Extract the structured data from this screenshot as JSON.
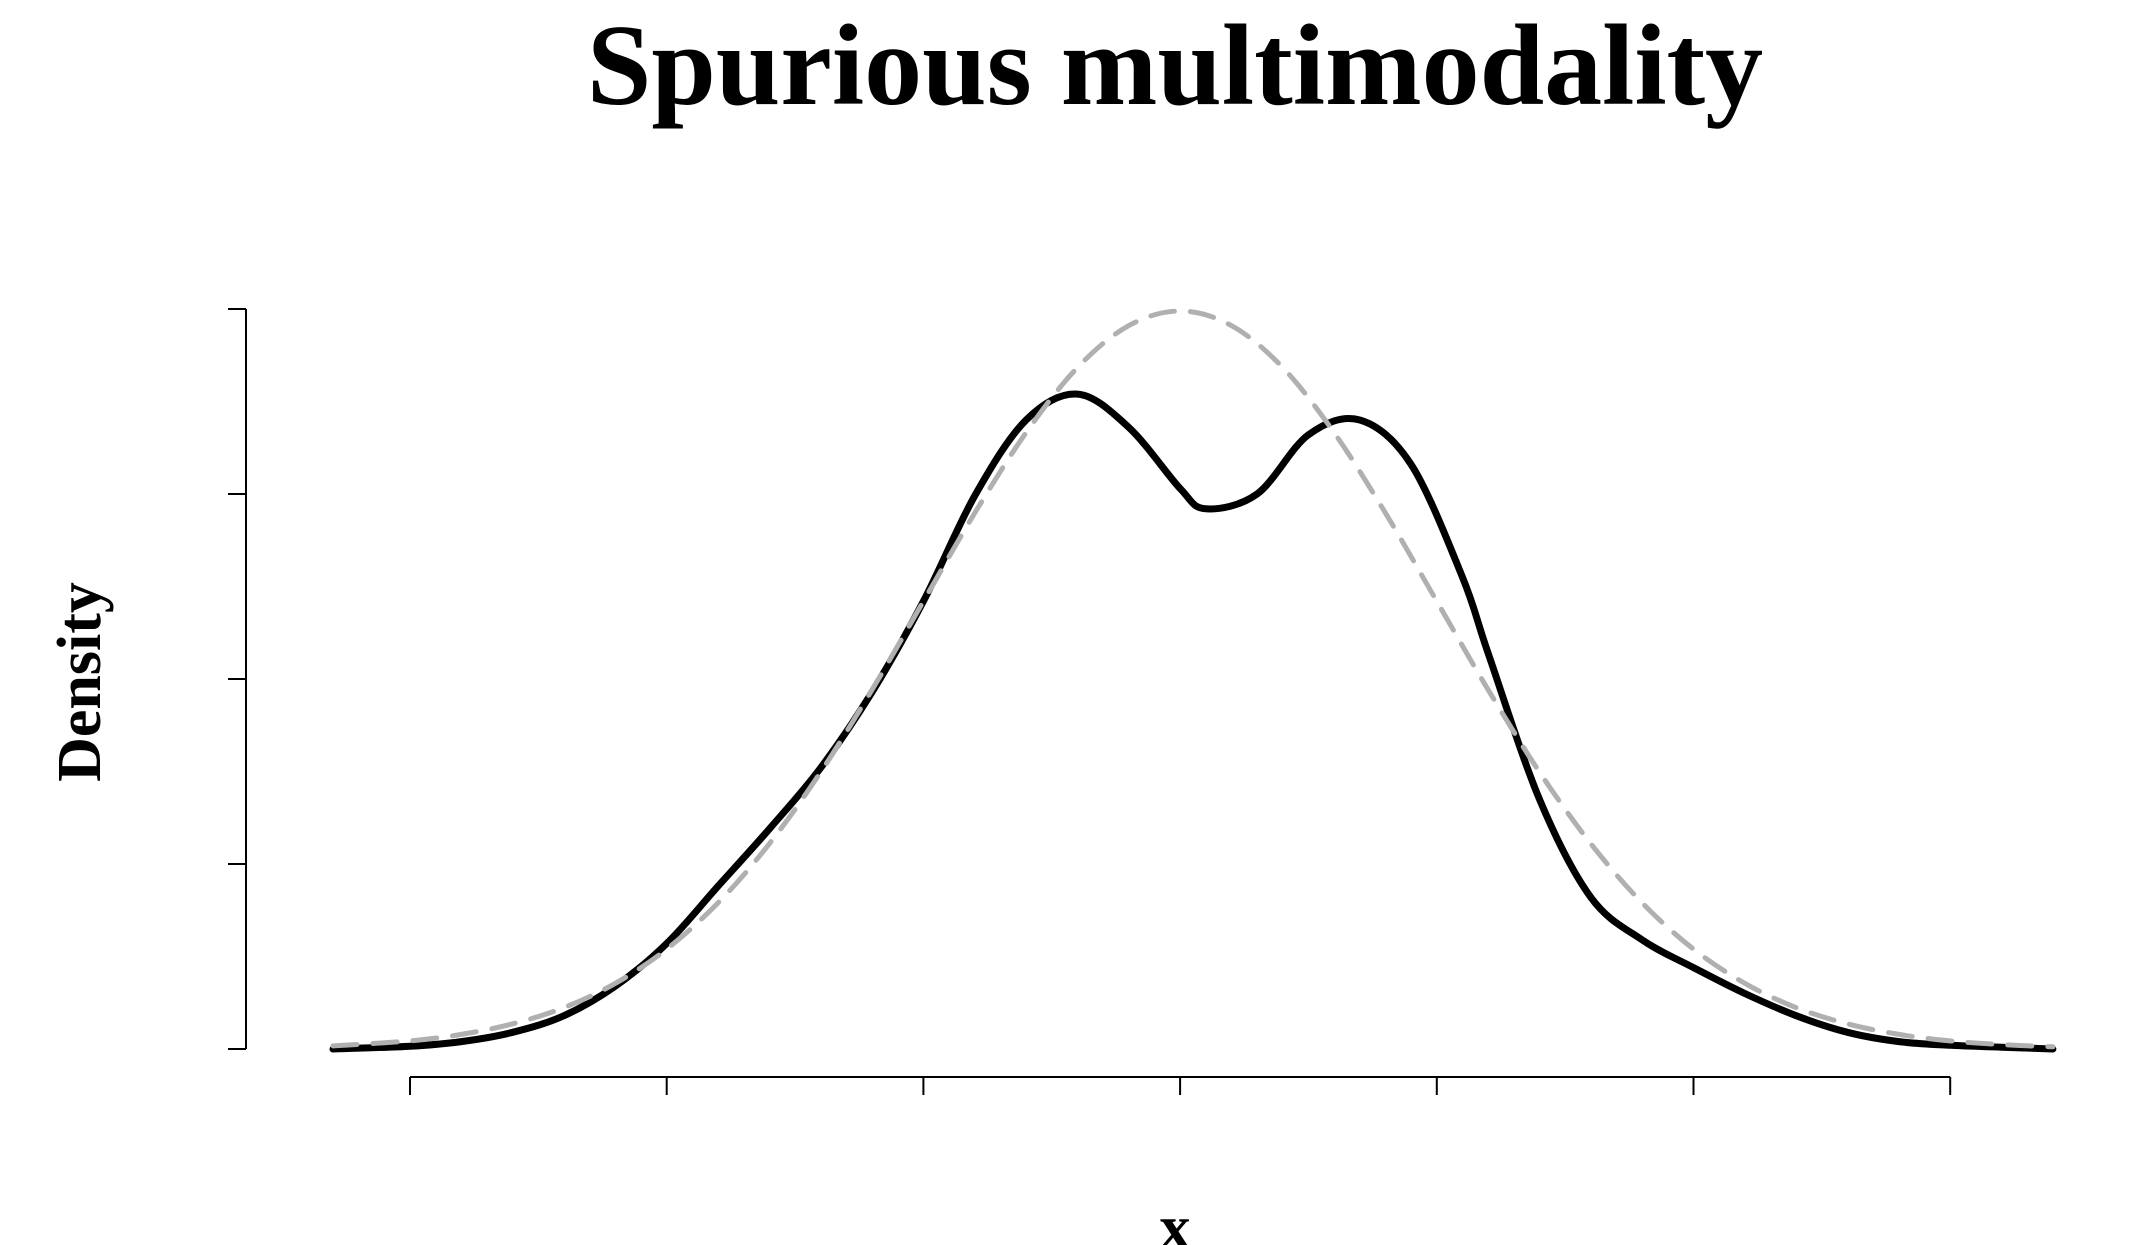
{
  "chart_data": {
    "type": "line",
    "title": "Spurious multimodality",
    "xlabel": "x",
    "ylabel": "Density",
    "xlim": [
      -3.3,
      3.4
    ],
    "ylim": [
      0,
      0.4
    ],
    "x_ticks": [
      -3,
      -2,
      -1,
      0,
      1,
      2,
      3
    ],
    "y_ticks": [
      0,
      0.1,
      0.2,
      0.3,
      0.4
    ],
    "tick_labels_shown": false,
    "grid": false,
    "legend": "none",
    "series": [
      {
        "style": "solid",
        "color": "#000000",
        "x": [
          -3.3,
          -3.0,
          -2.8,
          -2.6,
          -2.4,
          -2.2,
          -2.0,
          -1.8,
          -1.6,
          -1.4,
          -1.2,
          -1.0,
          -0.8,
          -0.6,
          -0.4,
          -0.2,
          0.0,
          0.1,
          0.3,
          0.5,
          0.7,
          0.9,
          1.1,
          1.2,
          1.4,
          1.6,
          1.8,
          2.0,
          2.2,
          2.4,
          2.6,
          2.8,
          3.0,
          3.2,
          3.4
        ],
        "y": [
          0.0,
          0.0015,
          0.004,
          0.009,
          0.018,
          0.034,
          0.057,
          0.088,
          0.119,
          0.152,
          0.193,
          0.242,
          0.299,
          0.34,
          0.354,
          0.336,
          0.303,
          0.292,
          0.3,
          0.332,
          0.34,
          0.316,
          0.255,
          0.214,
          0.135,
          0.082,
          0.059,
          0.044,
          0.03,
          0.018,
          0.009,
          0.004,
          0.002,
          0.001,
          0.0
        ]
      },
      {
        "style": "dashed",
        "color": "#b0b0b0",
        "x": [
          -3.3,
          -3.0,
          -2.8,
          -2.6,
          -2.4,
          -2.2,
          -2.0,
          -1.8,
          -1.6,
          -1.4,
          -1.2,
          -1.0,
          -0.8,
          -0.6,
          -0.4,
          -0.2,
          0.0,
          0.2,
          0.4,
          0.6,
          0.8,
          1.0,
          1.2,
          1.4,
          1.6,
          1.8,
          2.0,
          2.2,
          2.4,
          2.6,
          2.8,
          3.0,
          3.2,
          3.4
        ],
        "y": [
          0.0017,
          0.0044,
          0.0079,
          0.0136,
          0.0224,
          0.0355,
          0.054,
          0.079,
          0.111,
          0.1497,
          0.1942,
          0.242,
          0.2897,
          0.3332,
          0.3683,
          0.391,
          0.3989,
          0.391,
          0.3683,
          0.3332,
          0.2897,
          0.242,
          0.1942,
          0.1497,
          0.111,
          0.079,
          0.054,
          0.0355,
          0.0224,
          0.0136,
          0.0079,
          0.0044,
          0.0024,
          0.0012
        ]
      }
    ]
  }
}
